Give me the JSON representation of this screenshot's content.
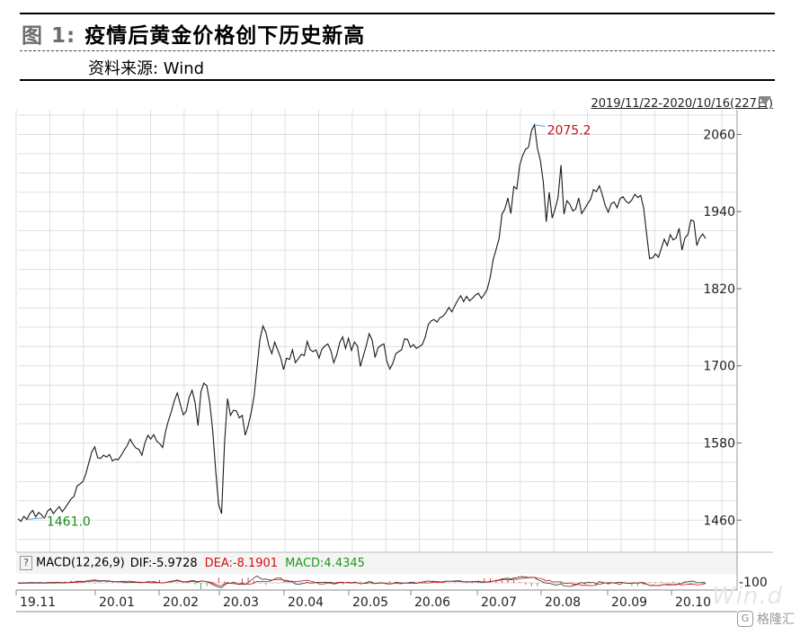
{
  "figure": {
    "label": "图 1:",
    "title": "疫情后黄金价格创下历史新高",
    "source": "资料来源: Wind"
  },
  "range_selector": "2019/11/22-2020/10/16(227日)",
  "macd": {
    "label": "MACD(12,26,9)",
    "dif": "DIF:-5.9728",
    "dea": "DEA:-8.1901",
    "macd": "MACD:4.4345",
    "axis_label": "-100"
  },
  "watermark": {
    "icon": "G",
    "text": "格隆汇",
    "brand": "Win.d"
  },
  "colors": {
    "price_line": "#1a1a1a",
    "high_label": "#d01010",
    "low_label": "#1a8a1a",
    "marker_line": "#5aa0e0",
    "dea": "#d01010",
    "macd": "#1a9a1a",
    "grid": "#d8d8d8"
  },
  "chart_data": {
    "type": "line",
    "x_tick_labels": [
      "19.11",
      "20.01",
      "20.02",
      "20.03",
      "20.04",
      "20.05",
      "20.06",
      "20.07",
      "20.08",
      "20.09",
      "20.10"
    ],
    "y_ticks": [
      1460,
      1580,
      1700,
      1820,
      1940,
      2060
    ],
    "ylim": [
      1410,
      2090
    ],
    "grid": true,
    "annotations": [
      {
        "text": "2075.2",
        "value": 2075.2,
        "type": "high"
      },
      {
        "text": "1461.0",
        "value": 1461.0,
        "type": "low"
      }
    ],
    "series": [
      {
        "values": [
          1462,
          1458,
          1466,
          1461,
          1470,
          1475,
          1465,
          1472,
          1468,
          1463,
          1474,
          1478,
          1470,
          1476,
          1481,
          1473,
          1479,
          1486,
          1493,
          1497,
          1513,
          1516,
          1520,
          1532,
          1549,
          1566,
          1574,
          1557,
          1556,
          1561,
          1558,
          1562,
          1552,
          1555,
          1554,
          1561,
          1569,
          1576,
          1586,
          1578,
          1572,
          1570,
          1561,
          1580,
          1592,
          1586,
          1593,
          1583,
          1579,
          1573,
          1598,
          1615,
          1629,
          1646,
          1658,
          1640,
          1624,
          1629,
          1651,
          1662,
          1643,
          1607,
          1660,
          1673,
          1669,
          1642,
          1598,
          1536,
          1484,
          1470,
          1580,
          1649,
          1623,
          1631,
          1630,
          1619,
          1623,
          1592,
          1607,
          1627,
          1653,
          1697,
          1741,
          1762,
          1752,
          1731,
          1719,
          1737,
          1725,
          1713,
          1694,
          1712,
          1710,
          1725,
          1705,
          1711,
          1718,
          1716,
          1738,
          1725,
          1722,
          1725,
          1712,
          1726,
          1731,
          1734,
          1724,
          1705,
          1717,
          1736,
          1745,
          1727,
          1743,
          1724,
          1737,
          1731,
          1699,
          1715,
          1731,
          1750,
          1740,
          1713,
          1728,
          1732,
          1734,
          1707,
          1695,
          1704,
          1719,
          1722,
          1725,
          1742,
          1741,
          1729,
          1733,
          1727,
          1730,
          1733,
          1745,
          1764,
          1770,
          1772,
          1768,
          1775,
          1777,
          1783,
          1791,
          1784,
          1793,
          1802,
          1809,
          1800,
          1808,
          1801,
          1805,
          1810,
          1813,
          1805,
          1811,
          1819,
          1837,
          1865,
          1881,
          1898,
          1936,
          1944,
          1961,
          1937,
          1979,
          1975,
          2012,
          2027,
          2037,
          2040,
          2066,
          2075,
          2038,
          2020,
          1986,
          1924,
          1970,
          1930,
          1944,
          1962,
          2012,
          1936,
          1957,
          1951,
          1941,
          1944,
          1961,
          1937,
          1944,
          1952,
          1959,
          1974,
          1971,
          1980,
          1966,
          1949,
          1939,
          1952,
          1955,
          1946,
          1960,
          1963,
          1956,
          1953,
          1958,
          1967,
          1962,
          1965,
          1945,
          1906,
          1867,
          1868,
          1874,
          1869,
          1883,
          1897,
          1887,
          1904,
          1896,
          1899,
          1914,
          1880,
          1899,
          1904,
          1927,
          1925,
          1887,
          1899,
          1905,
          1898
        ]
      }
    ]
  }
}
